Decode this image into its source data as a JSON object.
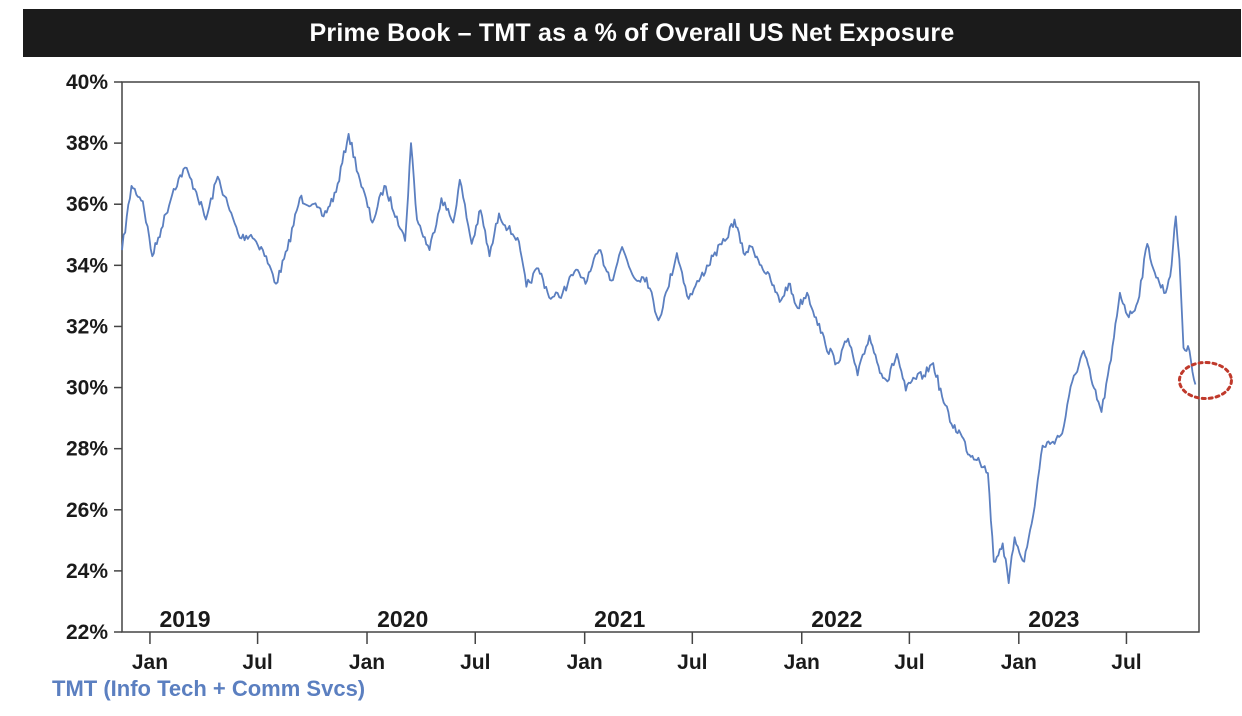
{
  "chart_data": {
    "type": "line",
    "title": "Prime Book – TMT as a % of Overall US Net Exposure",
    "ylim": [
      22,
      40
    ],
    "y_ticks": [
      "40%",
      "38%",
      "36%",
      "34%",
      "32%",
      "30%",
      "28%",
      "26%",
      "24%",
      "22%"
    ],
    "y_tick_values": [
      40,
      38,
      36,
      34,
      32,
      30,
      28,
      26,
      24,
      22
    ],
    "x_ticks": [
      "Jan",
      "Jul",
      "Jan",
      "Jul",
      "Jan",
      "Jul",
      "Jan",
      "Jul",
      "Jan",
      "Jul"
    ],
    "x_tick_dates": [
      "2019-01-01",
      "2019-07-01",
      "2020-01-01",
      "2020-07-01",
      "2021-01-01",
      "2021-07-01",
      "2022-01-01",
      "2022-07-01",
      "2023-01-01",
      "2023-07-01"
    ],
    "year_labels": [
      "2019",
      "2020",
      "2021",
      "2022",
      "2023"
    ],
    "year_label_dates": [
      "2019-03-01",
      "2020-03-01",
      "2021-03-01",
      "2022-03-01",
      "2023-03-01"
    ],
    "xlim": [
      "2018-11-15",
      "2023-10-31"
    ],
    "grid": false,
    "legend_position": "bottom-left",
    "series": [
      {
        "name": "TMT (Info Tech + Comm Svcs)",
        "color": "#5b7fc0",
        "points": [
          [
            "2018-11-15",
            34.5
          ],
          [
            "2018-12-01",
            36.6
          ],
          [
            "2018-12-20",
            36.1
          ],
          [
            "2019-01-05",
            34.3
          ],
          [
            "2019-01-20",
            35.2
          ],
          [
            "2019-02-10",
            36.5
          ],
          [
            "2019-03-01",
            37.2
          ],
          [
            "2019-03-20",
            36.4
          ],
          [
            "2019-04-05",
            35.5
          ],
          [
            "2019-04-25",
            36.9
          ],
          [
            "2019-05-15",
            35.8
          ],
          [
            "2019-06-01",
            34.9
          ],
          [
            "2019-06-20",
            35.0
          ],
          [
            "2019-07-10",
            34.5
          ],
          [
            "2019-08-01",
            33.4
          ],
          [
            "2019-08-20",
            34.5
          ],
          [
            "2019-09-10",
            36.2
          ],
          [
            "2019-10-01",
            36.0
          ],
          [
            "2019-10-20",
            35.6
          ],
          [
            "2019-11-10",
            36.4
          ],
          [
            "2019-12-01",
            38.3
          ],
          [
            "2019-12-20",
            36.8
          ],
          [
            "2020-01-10",
            35.4
          ],
          [
            "2020-01-30",
            36.6
          ],
          [
            "2020-02-20",
            35.6
          ],
          [
            "2020-03-05",
            34.8
          ],
          [
            "2020-03-15",
            38.0
          ],
          [
            "2020-03-25",
            35.5
          ],
          [
            "2020-04-15",
            34.5
          ],
          [
            "2020-05-05",
            36.2
          ],
          [
            "2020-05-25",
            35.4
          ],
          [
            "2020-06-05",
            36.8
          ],
          [
            "2020-06-25",
            34.7
          ],
          [
            "2020-07-10",
            35.8
          ],
          [
            "2020-07-25",
            34.3
          ],
          [
            "2020-08-10",
            35.7
          ],
          [
            "2020-08-25",
            35.2
          ],
          [
            "2020-09-10",
            34.9
          ],
          [
            "2020-09-25",
            33.3
          ],
          [
            "2020-10-15",
            33.9
          ],
          [
            "2020-11-05",
            32.9
          ],
          [
            "2020-11-25",
            33.1
          ],
          [
            "2020-12-15",
            33.8
          ],
          [
            "2021-01-05",
            33.5
          ],
          [
            "2021-01-25",
            34.5
          ],
          [
            "2021-02-15",
            33.5
          ],
          [
            "2021-03-05",
            34.6
          ],
          [
            "2021-03-25",
            33.6
          ],
          [
            "2021-04-15",
            33.6
          ],
          [
            "2021-05-05",
            32.2
          ],
          [
            "2021-05-20",
            33.2
          ],
          [
            "2021-06-05",
            34.4
          ],
          [
            "2021-06-25",
            32.9
          ],
          [
            "2021-07-15",
            33.6
          ],
          [
            "2021-08-05",
            34.3
          ],
          [
            "2021-08-25",
            34.8
          ],
          [
            "2021-09-10",
            35.5
          ],
          [
            "2021-09-25",
            34.4
          ],
          [
            "2021-10-10",
            34.6
          ],
          [
            "2021-10-25",
            34.0
          ],
          [
            "2021-11-10",
            33.5
          ],
          [
            "2021-11-25",
            32.8
          ],
          [
            "2021-12-10",
            33.4
          ],
          [
            "2021-12-25",
            32.6
          ],
          [
            "2022-01-10",
            33.1
          ],
          [
            "2022-01-25",
            32.3
          ],
          [
            "2022-02-10",
            31.4
          ],
          [
            "2022-03-01",
            30.8
          ],
          [
            "2022-03-20",
            31.6
          ],
          [
            "2022-04-05",
            30.4
          ],
          [
            "2022-04-25",
            31.7
          ],
          [
            "2022-05-10",
            30.7
          ],
          [
            "2022-05-25",
            30.2
          ],
          [
            "2022-06-10",
            31.1
          ],
          [
            "2022-06-25",
            29.9
          ],
          [
            "2022-07-10",
            30.3
          ],
          [
            "2022-07-25",
            30.4
          ],
          [
            "2022-08-10",
            30.8
          ],
          [
            "2022-08-25",
            29.7
          ],
          [
            "2022-09-10",
            28.8
          ],
          [
            "2022-09-25",
            28.5
          ],
          [
            "2022-10-10",
            27.8
          ],
          [
            "2022-10-25",
            27.7
          ],
          [
            "2022-11-10",
            27.2
          ],
          [
            "2022-11-20",
            24.3
          ],
          [
            "2022-12-05",
            24.9
          ],
          [
            "2022-12-15",
            23.6
          ],
          [
            "2022-12-25",
            25.1
          ],
          [
            "2023-01-10",
            24.3
          ],
          [
            "2023-01-25",
            25.8
          ],
          [
            "2023-02-10",
            28.1
          ],
          [
            "2023-02-25",
            28.2
          ],
          [
            "2023-03-15",
            28.5
          ],
          [
            "2023-04-01",
            30.2
          ],
          [
            "2023-04-20",
            31.2
          ],
          [
            "2023-05-05",
            30.1
          ],
          [
            "2023-05-20",
            29.2
          ],
          [
            "2023-06-05",
            30.9
          ],
          [
            "2023-06-20",
            33.1
          ],
          [
            "2023-07-05",
            32.3
          ],
          [
            "2023-07-20",
            32.8
          ],
          [
            "2023-08-05",
            34.7
          ],
          [
            "2023-08-20",
            33.6
          ],
          [
            "2023-09-05",
            33.1
          ],
          [
            "2023-09-15",
            34.0
          ],
          [
            "2023-09-22",
            35.6
          ],
          [
            "2023-09-28",
            34.2
          ],
          [
            "2023-10-05",
            31.3
          ],
          [
            "2023-10-15",
            31.2
          ],
          [
            "2023-10-25",
            30.1
          ]
        ]
      }
    ],
    "annotation": {
      "type": "dotted-circle",
      "color": "#c0392b",
      "at": [
        "2023-10-25",
        30.1
      ]
    }
  },
  "legend": {
    "label": "TMT (Info Tech + Comm Svcs)"
  }
}
